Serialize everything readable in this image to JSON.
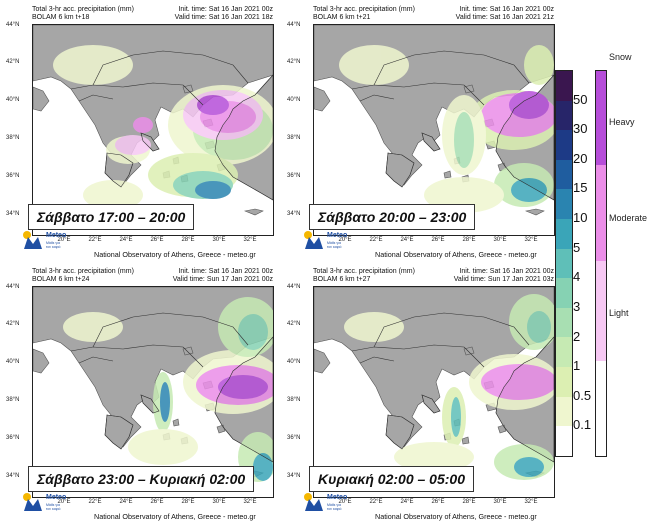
{
  "header": {
    "title": "Total 3-hr acc. precipitation (mm)",
    "model": "BOLAM 6 km"
  },
  "panels": [
    {
      "step": "t+18",
      "init": "Init. time: Sat 16 Jan 2021 00z",
      "valid": "Valid time: Sat 16 Jan 2021 18z",
      "caption": "Σάββατο 17:00 – 20:00"
    },
    {
      "step": "t+21",
      "init": "Init. time: Sat 16 Jan 2021 00z",
      "valid": "Valid time: Sat 16 Jan 2021 21z",
      "caption": "Σάββατο 20:00 – 23:00"
    },
    {
      "step": "t+24",
      "init": "Init. time: Sat 16 Jan 2021 00z",
      "valid": "Valid time: Sun 17 Jan 2021 00z",
      "caption": "Σάββατο 23:00 –  Κυριακή 02:00"
    },
    {
      "step": "t+27",
      "init": "Init. time: Sat 16 Jan 2021 00z",
      "valid": "Valid time: Sun 17 Jan 2021 03z",
      "caption": "Κυριακή 02:00 – 05:00"
    }
  ],
  "axes": {
    "lat": [
      "44°N",
      "42°N",
      "40°N",
      "38°N",
      "36°N",
      "34°N"
    ],
    "lon": [
      "20°E",
      "22°E",
      "24°E",
      "26°E",
      "28°E",
      "30°E",
      "32°E"
    ]
  },
  "footer": "National Observatory of Athens, Greece - meteo.gr",
  "logo": {
    "name": "Meteo",
    "sub1": "Μάθε για",
    "sub2": "τον καιρό"
  },
  "legend": {
    "snow_title": "Snow",
    "rain_levels": [
      "0.1",
      "0.5",
      "1",
      "2",
      "3",
      "4",
      "5",
      "10",
      "15",
      "20",
      "30",
      "50"
    ],
    "rain_colors": [
      "#ffffff",
      "#eff6cf",
      "#dcefb2",
      "#c6eab3",
      "#a8dfb2",
      "#86d2b3",
      "#5fbfb8",
      "#3aa5b8",
      "#2a84b0",
      "#1f5d9f",
      "#1d3a86",
      "#272569",
      "#3a164f"
    ],
    "snow_levels": [
      "Light",
      "Moderate",
      "Heavy"
    ],
    "snow_colors": [
      "#f6c8f3",
      "#eb8ee8",
      "#b64ed9"
    ]
  }
}
